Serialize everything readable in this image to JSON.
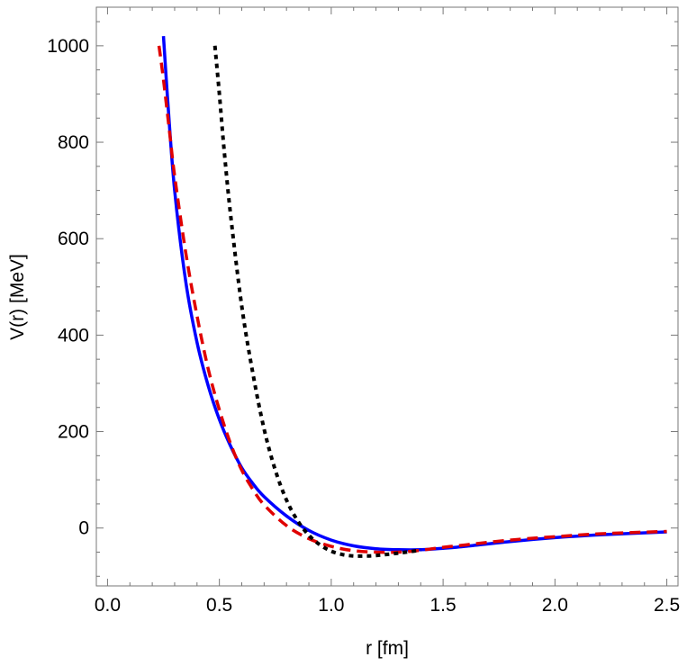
{
  "chart_data": {
    "type": "line",
    "title": "",
    "xlabel": "r [fm]",
    "ylabel": "V(r) [MeV]",
    "xlim": [
      -0.05,
      2.55
    ],
    "ylim": [
      -120,
      1080
    ],
    "x_ticks": [
      0.0,
      0.5,
      1.0,
      1.5,
      2.0,
      2.5
    ],
    "x_tick_labels": [
      "0.0",
      "0.5",
      "1.0",
      "1.5",
      "2.0",
      "2.5"
    ],
    "y_ticks": [
      0,
      200,
      400,
      600,
      800,
      1000
    ],
    "y_tick_labels": [
      "0",
      "200",
      "400",
      "600",
      "800",
      "1000"
    ],
    "grid": false,
    "frame": true,
    "series": [
      {
        "color": "#0000ff",
        "style": "solid",
        "x": [
          0.25,
          0.27,
          0.3,
          0.35,
          0.4,
          0.45,
          0.5,
          0.55,
          0.6,
          0.65,
          0.7,
          0.8,
          0.9,
          1.0,
          1.1,
          1.2,
          1.3,
          1.4,
          1.5,
          1.6,
          1.8,
          2.0,
          2.2,
          2.5
        ],
        "y": [
          1020,
          880,
          700,
          510,
          385,
          295,
          225,
          170,
          125,
          92,
          65,
          25,
          -5,
          -25,
          -37,
          -43,
          -45,
          -45,
          -42,
          -38,
          -28,
          -20,
          -14,
          -8
        ]
      },
      {
        "color": "#e00000",
        "style": "dashed",
        "x": [
          0.23,
          0.25,
          0.28,
          0.3,
          0.35,
          0.4,
          0.45,
          0.5,
          0.55,
          0.6,
          0.65,
          0.7,
          0.8,
          0.9,
          1.0,
          1.1,
          1.2,
          1.3,
          1.4,
          1.5,
          1.6,
          1.8,
          2.0,
          2.2,
          2.5
        ],
        "y": [
          1000,
          930,
          810,
          730,
          570,
          440,
          330,
          245,
          175,
          120,
          80,
          48,
          5,
          -22,
          -38,
          -47,
          -50,
          -50,
          -46,
          -40,
          -35,
          -25,
          -18,
          -12,
          -7
        ]
      },
      {
        "color": "#000000",
        "style": "dotted",
        "x": [
          0.48,
          0.5,
          0.52,
          0.55,
          0.6,
          0.65,
          0.7,
          0.75,
          0.8,
          0.85,
          0.9,
          0.95,
          1.0,
          1.05,
          1.1,
          1.15,
          1.2,
          1.3,
          1.4
        ],
        "y": [
          1000,
          900,
          790,
          650,
          460,
          320,
          205,
          120,
          58,
          15,
          -15,
          -35,
          -48,
          -55,
          -58,
          -58,
          -57,
          -52,
          -46
        ]
      }
    ]
  }
}
